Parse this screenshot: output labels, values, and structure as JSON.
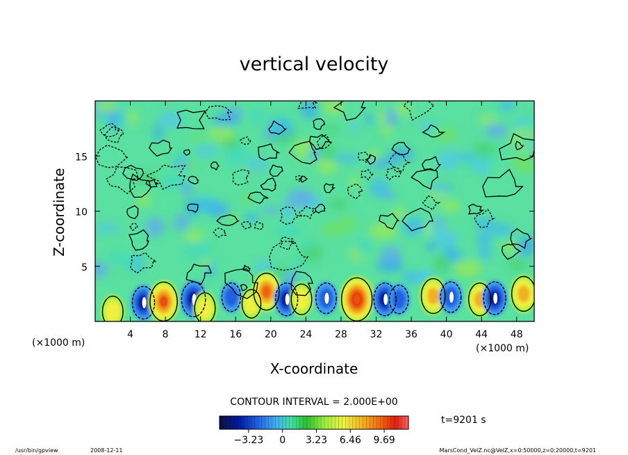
{
  "chart_data": {
    "type": "heatmap",
    "title": "vertical velocity",
    "xlabel": "X-coordinate",
    "ylabel": "Z-coordinate",
    "x_unit_left": "(×1000 m)",
    "x_unit_right": "(×1000 m)",
    "xlim": [
      0,
      50
    ],
    "ylim": [
      0,
      20
    ],
    "xticks": [
      4,
      8,
      12,
      16,
      20,
      24,
      28,
      32,
      36,
      40,
      44,
      48
    ],
    "yticks": [
      5,
      10,
      15
    ],
    "grid": false,
    "contour_interval_text": "CONTOUR INTERVAL = 2.000E+00",
    "colorbar_ticks": [
      "-3.23",
      "0",
      "3.23",
      "6.46",
      "9.69"
    ],
    "colorbar_range": [
      -6.0,
      12.0
    ],
    "colorbar_colors": [
      "#101040",
      "#0018a0",
      "#2060e0",
      "#40b0f0",
      "#40e0a0",
      "#30e030",
      "#a0f040",
      "#f0f040",
      "#f0b020",
      "#f06010",
      "#e02010",
      "#ff5050"
    ],
    "time_label": "t=9201 s",
    "plumes_near_surface": [
      {
        "x": 2.0,
        "z": 0.9,
        "w": 4
      },
      {
        "x": 5.5,
        "z": 1.7,
        "w": -5
      },
      {
        "x": 7.8,
        "z": 1.8,
        "w": 8
      },
      {
        "x": 11.2,
        "z": 2.0,
        "w": -6
      },
      {
        "x": 12.5,
        "z": 1.2,
        "w": 4
      },
      {
        "x": 15.5,
        "z": 2.2,
        "w": -3
      },
      {
        "x": 17.8,
        "z": 1.6,
        "w": 3
      },
      {
        "x": 19.5,
        "z": 2.7,
        "w": 7
      },
      {
        "x": 21.8,
        "z": 2.0,
        "w": -5
      },
      {
        "x": 23.5,
        "z": 2.0,
        "w": 4
      },
      {
        "x": 26.3,
        "z": 2.1,
        "w": -4
      },
      {
        "x": 29.8,
        "z": 2.0,
        "w": 10
      },
      {
        "x": 33.0,
        "z": 2.0,
        "w": -5
      },
      {
        "x": 34.6,
        "z": 2.0,
        "w": -3
      },
      {
        "x": 38.5,
        "z": 2.3,
        "w": 6
      },
      {
        "x": 40.5,
        "z": 2.2,
        "w": -4
      },
      {
        "x": 43.8,
        "z": 2.0,
        "w": 5
      },
      {
        "x": 45.5,
        "z": 2.1,
        "w": -5
      },
      {
        "x": 48.8,
        "z": 2.5,
        "w": 6
      }
    ]
  },
  "footer": {
    "program": "/usr/bin/gpview",
    "date": "2008-12-11",
    "source": "MarsCond_VelZ.nc@VelZ,x=0:50000,z=0:20000,t=9201"
  }
}
